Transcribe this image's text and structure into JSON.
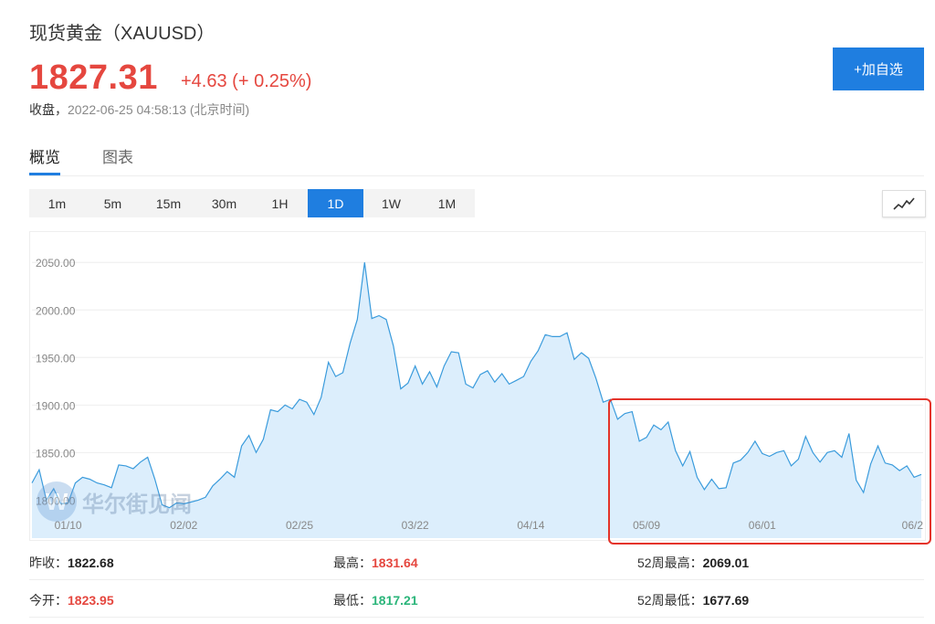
{
  "header": {
    "title": "现货黄金（XAUUSD）",
    "price": "1827.31",
    "change": "+4.63",
    "change_pct": "(+ 0.25%)",
    "close_label": "收盘，",
    "close_time": "2022-06-25 04:58:13 (北京时间)",
    "watch_button": "+加自选"
  },
  "tabs": [
    {
      "label": "概览",
      "active": true
    },
    {
      "label": "图表",
      "active": false
    }
  ],
  "ranges": [
    {
      "label": "1m"
    },
    {
      "label": "5m"
    },
    {
      "label": "15m"
    },
    {
      "label": "30m"
    },
    {
      "label": "1H"
    },
    {
      "label": "1D",
      "active": true
    },
    {
      "label": "1W"
    },
    {
      "label": "1M"
    }
  ],
  "chart_toggle_icon": "line-chart-icon",
  "watermark": {
    "logo": "W",
    "text": "华尔街见闻"
  },
  "colors": {
    "accent": "#1f7ee0",
    "up": "#e5473f",
    "down": "#2bb57a",
    "line": "#3a9bdc",
    "fill": "#dceefc",
    "highlight": "#e4332a"
  },
  "chart_data": {
    "type": "area",
    "xticks": [
      "01/10",
      "02/02",
      "02/25",
      "03/22",
      "04/14",
      "05/09",
      "06/01",
      "06/2"
    ],
    "yticks": [
      "1800.00",
      "1850.00",
      "1900.00",
      "1950.00",
      "2000.00",
      "2050.00"
    ],
    "ylim": [
      1760,
      2080
    ],
    "x_index_of_ticks": [
      5,
      21,
      37,
      53,
      69,
      85,
      101,
      117
    ],
    "values": [
      1818,
      1832,
      1800,
      1812,
      1796,
      1797,
      1818,
      1824,
      1822,
      1818,
      1816,
      1813,
      1837,
      1836,
      1833,
      1840,
      1845,
      1822,
      1795,
      1792,
      1797,
      1796,
      1798,
      1800,
      1803,
      1815,
      1822,
      1830,
      1824,
      1857,
      1868,
      1850,
      1864,
      1895,
      1893,
      1900,
      1896,
      1906,
      1903,
      1890,
      1908,
      1945,
      1930,
      1934,
      1965,
      1990,
      2050,
      1991,
      1994,
      1990,
      1962,
      1917,
      1923,
      1941,
      1922,
      1935,
      1919,
      1941,
      1956,
      1955,
      1922,
      1918,
      1932,
      1936,
      1924,
      1933,
      1922,
      1926,
      1930,
      1946,
      1957,
      1974,
      1972,
      1972,
      1976,
      1948,
      1955,
      1949,
      1928,
      1903,
      1906,
      1885,
      1891,
      1893,
      1862,
      1866,
      1879,
      1874,
      1882,
      1852,
      1836,
      1851,
      1824,
      1811,
      1822,
      1812,
      1813,
      1839,
      1842,
      1850,
      1862,
      1849,
      1846,
      1850,
      1852,
      1836,
      1843,
      1867,
      1850,
      1840,
      1850,
      1852,
      1845,
      1870,
      1821,
      1808,
      1838,
      1857,
      1839,
      1837,
      1831,
      1836,
      1824,
      1827
    ]
  },
  "stats": [
    {
      "label": "昨收：",
      "value": "1822.68",
      "tone": "dark"
    },
    {
      "label": "最高：",
      "value": "1831.64",
      "tone": "red"
    },
    {
      "label": "52周最高：",
      "value": "2069.01",
      "tone": "dark"
    },
    {
      "label": "今开：",
      "value": "1823.95",
      "tone": "red"
    },
    {
      "label": "最低：",
      "value": "1817.21",
      "tone": "green"
    },
    {
      "label": "52周最低：",
      "value": "1677.69",
      "tone": "dark"
    }
  ]
}
